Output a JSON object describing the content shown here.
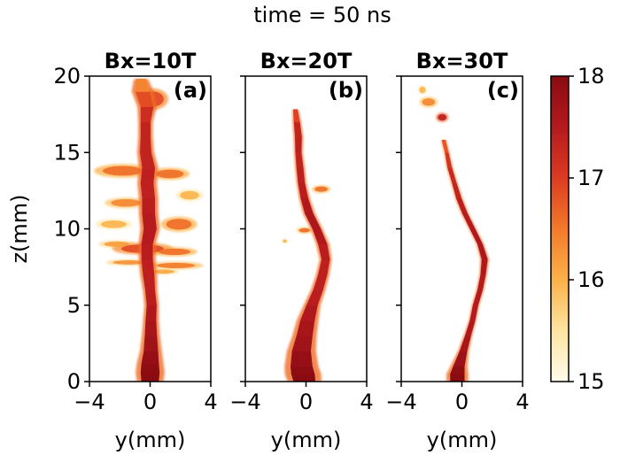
{
  "figure_title": "time = 50 ns",
  "colorbar": {
    "ticks": [
      15,
      16,
      17,
      18
    ],
    "range": [
      15,
      18
    ],
    "colormap": "YlOrRd-like",
    "colors": [
      "#fffcec",
      "#fde3a0",
      "#fcb24a",
      "#f27a2a",
      "#dd3a22",
      "#b51a1e",
      "#8a0b12"
    ]
  },
  "chart_data": [
    {
      "type": "heatmap",
      "title": "Bx=10T",
      "panel_label": "(a)",
      "xlabel": "y(mm)",
      "ylabel": "z(mm)",
      "xlim": [
        -4,
        4
      ],
      "ylim": [
        0,
        20
      ],
      "xticks": [
        -4,
        0,
        4
      ],
      "yticks": [
        0,
        5,
        10,
        15,
        20
      ],
      "colorbar_range": [
        15,
        18
      ],
      "jet_profile": [
        {
          "z": 0.0,
          "y": 0.0,
          "w": 1.1,
          "v": 18.0
        },
        {
          "z": 0.6,
          "y": 0.0,
          "w": 1.2,
          "v": 18.0
        },
        {
          "z": 1.2,
          "y": 0.0,
          "w": 1.1,
          "v": 17.9
        },
        {
          "z": 2.0,
          "y": 0.05,
          "w": 0.9,
          "v": 17.8
        },
        {
          "z": 3.0,
          "y": 0.05,
          "w": 0.75,
          "v": 17.7
        },
        {
          "z": 4.0,
          "y": 0.05,
          "w": 0.65,
          "v": 17.6
        },
        {
          "z": 5.0,
          "y": 0.1,
          "w": 0.6,
          "v": 17.5
        },
        {
          "z": 6.0,
          "y": 0.0,
          "w": 0.6,
          "v": 17.4
        },
        {
          "z": 7.0,
          "y": -0.1,
          "w": 0.7,
          "v": 17.4
        },
        {
          "z": 8.0,
          "y": -0.2,
          "w": 0.7,
          "v": 17.4
        },
        {
          "z": 9.0,
          "y": -0.2,
          "w": 0.7,
          "v": 17.5
        },
        {
          "z": 10.0,
          "y": 0.0,
          "w": 0.8,
          "v": 17.5
        },
        {
          "z": 11.0,
          "y": -0.1,
          "w": 0.8,
          "v": 17.5
        },
        {
          "z": 12.0,
          "y": -0.1,
          "w": 0.8,
          "v": 17.4
        },
        {
          "z": 13.0,
          "y": -0.2,
          "w": 0.8,
          "v": 17.4
        },
        {
          "z": 14.0,
          "y": -0.1,
          "w": 0.8,
          "v": 17.4
        },
        {
          "z": 15.0,
          "y": -0.3,
          "w": 0.7,
          "v": 17.3
        },
        {
          "z": 16.0,
          "y": -0.3,
          "w": 0.6,
          "v": 17.4
        },
        {
          "z": 17.0,
          "y": -0.3,
          "w": 0.6,
          "v": 17.3
        },
        {
          "z": 18.0,
          "y": -0.2,
          "w": 0.8,
          "v": 17.1
        },
        {
          "z": 19.0,
          "y": -0.5,
          "w": 0.9,
          "v": 16.6
        },
        {
          "z": 19.8,
          "y": -0.6,
          "w": 0.6,
          "v": 16.2
        }
      ],
      "patches": [
        {
          "y": 0.2,
          "z": 18.5,
          "ry": 1.0,
          "rz": 0.7,
          "v": 16.9
        },
        {
          "y": -1.8,
          "z": 13.8,
          "ry": 1.9,
          "rz": 0.45,
          "v": 16.6
        },
        {
          "y": 1.3,
          "z": 13.6,
          "ry": 1.3,
          "rz": 0.4,
          "v": 16.6
        },
        {
          "y": 2.6,
          "z": 12.2,
          "ry": 0.9,
          "rz": 0.4,
          "v": 16.0
        },
        {
          "y": -1.6,
          "z": 11.7,
          "ry": 1.4,
          "rz": 0.35,
          "v": 16.4
        },
        {
          "y": 1.9,
          "z": 10.3,
          "ry": 1.2,
          "rz": 0.5,
          "v": 16.6
        },
        {
          "y": -2.4,
          "z": 10.3,
          "ry": 1.2,
          "rz": 0.35,
          "v": 16.0
        },
        {
          "y": -2.2,
          "z": 9.0,
          "ry": 1.2,
          "rz": 0.25,
          "v": 16.2
        },
        {
          "y": -0.5,
          "z": 8.7,
          "ry": 2.0,
          "rz": 0.4,
          "v": 16.9
        },
        {
          "y": 1.6,
          "z": 8.5,
          "ry": 1.5,
          "rz": 0.3,
          "v": 16.6
        },
        {
          "y": -1.4,
          "z": 7.8,
          "ry": 1.5,
          "rz": 0.2,
          "v": 16.3
        },
        {
          "y": 1.7,
          "z": 7.6,
          "ry": 1.8,
          "rz": 0.25,
          "v": 16.5
        },
        {
          "y": 0.9,
          "z": 7.2,
          "ry": 1.0,
          "rz": 0.2,
          "v": 16.1
        }
      ]
    },
    {
      "type": "heatmap",
      "title": "Bx=20T",
      "panel_label": "(b)",
      "xlabel": "y(mm)",
      "xlim": [
        -4,
        4
      ],
      "ylim": [
        0,
        20
      ],
      "xticks": [
        -4,
        0,
        4
      ],
      "colorbar_range": [
        15,
        18
      ],
      "jet_profile": [
        {
          "z": 0.0,
          "y": -0.1,
          "w": 1.4,
          "v": 18.0
        },
        {
          "z": 0.5,
          "y": -0.2,
          "w": 1.5,
          "v": 18.0
        },
        {
          "z": 1.0,
          "y": -0.3,
          "w": 1.4,
          "v": 17.9
        },
        {
          "z": 2.0,
          "y": -0.3,
          "w": 1.2,
          "v": 17.8
        },
        {
          "z": 3.0,
          "y": -0.1,
          "w": 1.0,
          "v": 17.7
        },
        {
          "z": 4.0,
          "y": 0.1,
          "w": 0.9,
          "v": 17.6
        },
        {
          "z": 5.0,
          "y": 0.4,
          "w": 0.7,
          "v": 17.5
        },
        {
          "z": 6.0,
          "y": 0.8,
          "w": 0.6,
          "v": 17.4
        },
        {
          "z": 7.0,
          "y": 1.1,
          "w": 0.55,
          "v": 17.4
        },
        {
          "z": 8.0,
          "y": 1.3,
          "w": 0.5,
          "v": 17.4
        },
        {
          "z": 9.0,
          "y": 1.1,
          "w": 0.55,
          "v": 17.5
        },
        {
          "z": 10.0,
          "y": 0.7,
          "w": 0.5,
          "v": 17.6
        },
        {
          "z": 11.0,
          "y": 0.2,
          "w": 0.5,
          "v": 17.6
        },
        {
          "z": 12.0,
          "y": -0.1,
          "w": 0.45,
          "v": 17.5
        },
        {
          "z": 13.0,
          "y": -0.3,
          "w": 0.4,
          "v": 17.4
        },
        {
          "z": 14.0,
          "y": -0.4,
          "w": 0.4,
          "v": 17.4
        },
        {
          "z": 15.0,
          "y": -0.5,
          "w": 0.35,
          "v": 17.3
        },
        {
          "z": 16.0,
          "y": -0.5,
          "w": 0.4,
          "v": 17.5
        },
        {
          "z": 17.0,
          "y": -0.6,
          "w": 0.35,
          "v": 17.2
        },
        {
          "z": 17.8,
          "y": -0.7,
          "w": 0.25,
          "v": 16.7
        }
      ],
      "patches": [
        {
          "y": 1.0,
          "z": 12.6,
          "ry": 0.6,
          "rz": 0.25,
          "v": 16.6
        },
        {
          "y": -1.4,
          "z": 9.2,
          "ry": 0.2,
          "rz": 0.15,
          "v": 16.0
        },
        {
          "y": -0.1,
          "z": 9.9,
          "ry": 0.5,
          "rz": 0.2,
          "v": 16.6
        }
      ]
    },
    {
      "type": "heatmap",
      "title": "Bx=30T",
      "panel_label": "(c)",
      "xlabel": "y(mm)",
      "xlim": [
        -4,
        4
      ],
      "ylim": [
        0,
        20
      ],
      "xticks": [
        -4,
        0,
        4
      ],
      "colorbar_range": [
        15,
        18
      ],
      "jet_profile": [
        {
          "z": 0.0,
          "y": -0.3,
          "w": 0.9,
          "v": 18.0
        },
        {
          "z": 0.5,
          "y": -0.3,
          "w": 0.9,
          "v": 18.0
        },
        {
          "z": 1.0,
          "y": -0.2,
          "w": 0.7,
          "v": 17.9
        },
        {
          "z": 2.0,
          "y": 0.1,
          "w": 0.45,
          "v": 17.7
        },
        {
          "z": 3.0,
          "y": 0.4,
          "w": 0.35,
          "v": 17.6
        },
        {
          "z": 4.0,
          "y": 0.7,
          "w": 0.3,
          "v": 17.5
        },
        {
          "z": 5.0,
          "y": 0.9,
          "w": 0.3,
          "v": 17.5
        },
        {
          "z": 6.0,
          "y": 1.2,
          "w": 0.3,
          "v": 17.5
        },
        {
          "z": 7.0,
          "y": 1.4,
          "w": 0.3,
          "v": 17.5
        },
        {
          "z": 8.0,
          "y": 1.5,
          "w": 0.35,
          "v": 17.6
        },
        {
          "z": 9.0,
          "y": 1.2,
          "w": 0.3,
          "v": 17.6
        },
        {
          "z": 10.0,
          "y": 0.7,
          "w": 0.3,
          "v": 17.5
        },
        {
          "z": 11.0,
          "y": 0.2,
          "w": 0.3,
          "v": 17.5
        },
        {
          "z": 12.0,
          "y": -0.2,
          "w": 0.3,
          "v": 17.4
        },
        {
          "z": 13.0,
          "y": -0.5,
          "w": 0.25,
          "v": 17.3
        },
        {
          "z": 14.0,
          "y": -0.8,
          "w": 0.25,
          "v": 17.2
        },
        {
          "z": 15.0,
          "y": -1.0,
          "w": 0.2,
          "v": 17.0
        },
        {
          "z": 15.8,
          "y": -1.2,
          "w": 0.2,
          "v": 16.6
        }
      ],
      "patches": [
        {
          "y": -1.3,
          "z": 17.3,
          "ry": 0.4,
          "rz": 0.3,
          "v": 17.4
        },
        {
          "y": -2.2,
          "z": 18.3,
          "ry": 0.6,
          "rz": 0.35,
          "v": 16.4
        },
        {
          "y": -2.6,
          "z": 19.1,
          "ry": 0.3,
          "rz": 0.3,
          "v": 16.0
        }
      ]
    }
  ]
}
